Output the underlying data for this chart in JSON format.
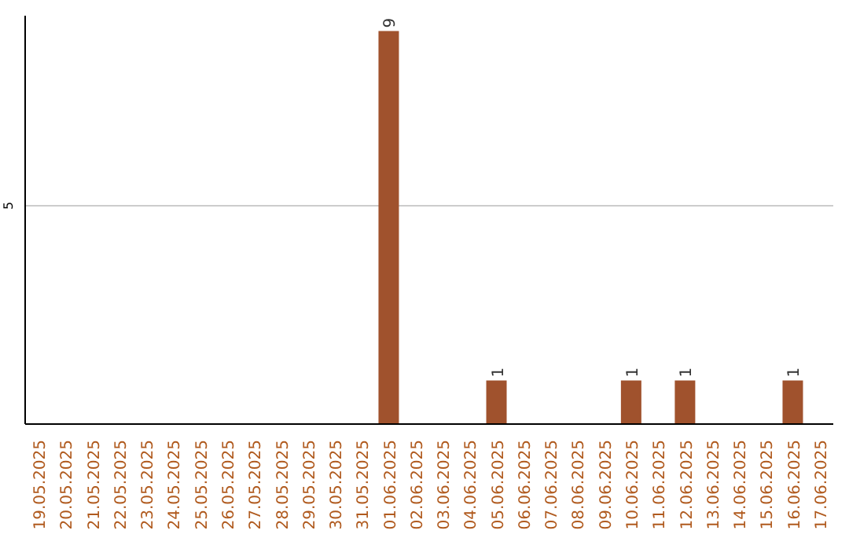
{
  "chart_data": {
    "type": "bar",
    "categories": [
      "19.05.2025",
      "20.05.2025",
      "21.05.2025",
      "22.05.2025",
      "23.05.2025",
      "24.05.2025",
      "25.05.2025",
      "26.05.2025",
      "27.05.2025",
      "28.05.2025",
      "29.05.2025",
      "30.05.2025",
      "31.05.2025",
      "01.06.2025",
      "02.06.2025",
      "03.06.2025",
      "04.06.2025",
      "05.06.2025",
      "06.06.2025",
      "07.06.2025",
      "08.06.2025",
      "09.06.2025",
      "10.06.2025",
      "11.06.2025",
      "12.06.2025",
      "13.06.2025",
      "14.06.2025",
      "15.06.2025",
      "16.06.2025",
      "17.06.2025"
    ],
    "values": [
      null,
      null,
      null,
      null,
      null,
      null,
      null,
      null,
      null,
      null,
      null,
      null,
      null,
      9,
      null,
      null,
      null,
      1,
      null,
      null,
      null,
      null,
      1,
      null,
      1,
      null,
      null,
      null,
      1,
      null
    ],
    "value_labels": [
      null,
      null,
      null,
      null,
      null,
      null,
      null,
      null,
      null,
      null,
      null,
      null,
      null,
      "9",
      null,
      null,
      null,
      "1",
      null,
      null,
      null,
      null,
      "1",
      null,
      "1",
      null,
      null,
      null,
      "1",
      null
    ],
    "color": "#a0522d",
    "ylim": [
      0,
      9.35
    ],
    "yticks": [
      5
    ],
    "grid": "y"
  }
}
